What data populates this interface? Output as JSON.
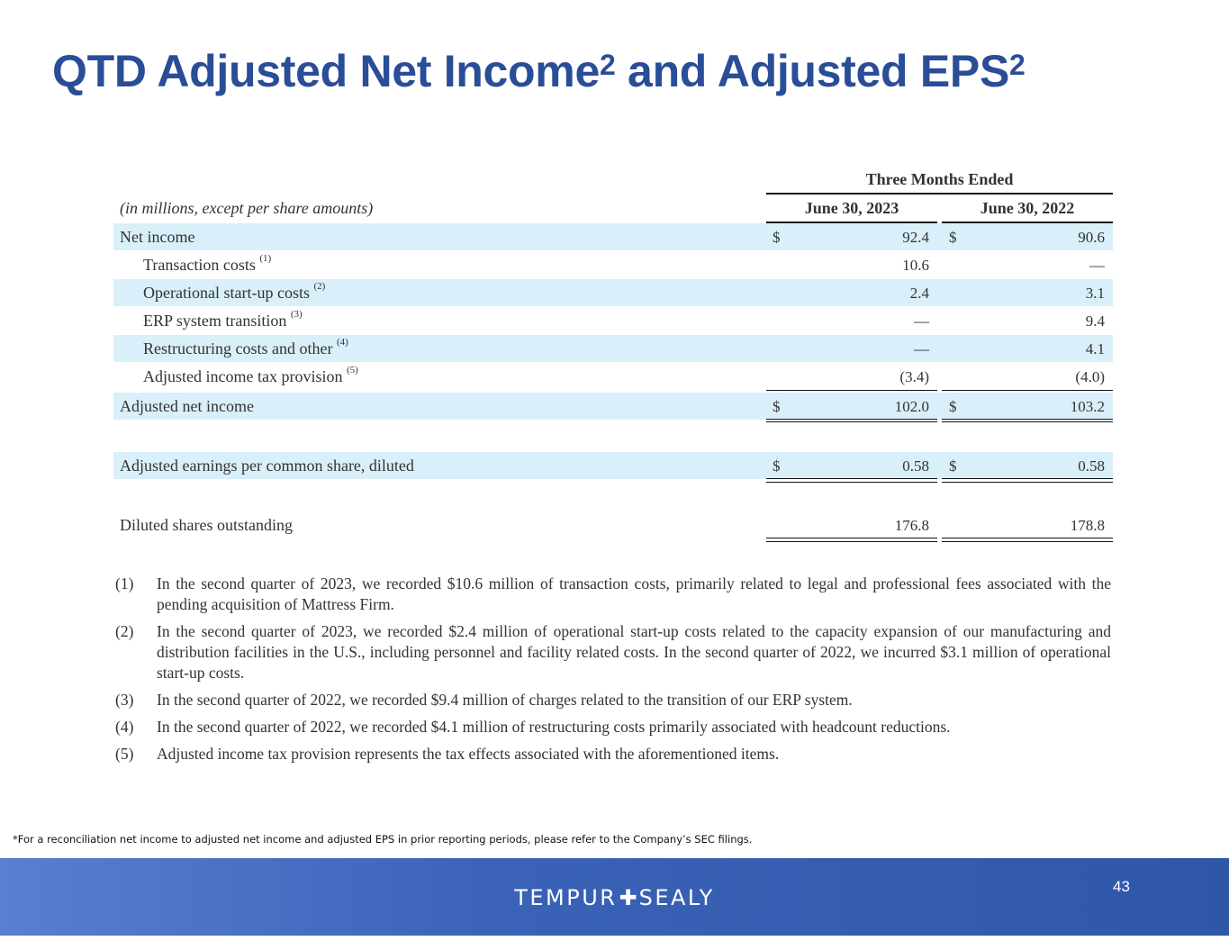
{
  "title": {
    "main": "QTD Adjusted Net Income",
    "sup1": "2",
    "mid": " and Adjusted EPS",
    "sup2": "2"
  },
  "table": {
    "group_header": "Three Months Ended",
    "units_label": "(in millions, except per share amounts)",
    "col1": "June 30, 2023",
    "col2": "June 30, 2022",
    "rows": [
      {
        "label": "Net income",
        "ref": "",
        "d1": "$",
        "v1": "92.4",
        "d2": "$",
        "v2": "90.6"
      },
      {
        "label": "Transaction costs",
        "ref": "(1)",
        "d1": "",
        "v1": "10.6",
        "d2": "",
        "v2": "—"
      },
      {
        "label": "Operational start-up costs",
        "ref": "(2)",
        "d1": "",
        "v1": "2.4",
        "d2": "",
        "v2": "3.1"
      },
      {
        "label": "ERP system transition",
        "ref": "(3)",
        "d1": "",
        "v1": "—",
        "d2": "",
        "v2": "9.4"
      },
      {
        "label": "Restructuring costs and other",
        "ref": "(4)",
        "d1": "",
        "v1": "—",
        "d2": "",
        "v2": "4.1"
      },
      {
        "label": "Adjusted income tax provision",
        "ref": "(5)",
        "d1": "",
        "v1": "(3.4)",
        "d2": "",
        "v2": "(4.0)"
      },
      {
        "label": "Adjusted net income",
        "ref": "",
        "d1": "$",
        "v1": "102.0",
        "d2": "$",
        "v2": "103.2"
      },
      {
        "label": "Adjusted earnings per common share, diluted",
        "ref": "",
        "d1": "$",
        "v1": "0.58",
        "d2": "$",
        "v2": "0.58"
      },
      {
        "label": "Diluted shares outstanding",
        "ref": "",
        "d1": "",
        "v1": "176.8",
        "d2": "",
        "v2": "178.8"
      }
    ]
  },
  "notes": [
    {
      "num": "(1)",
      "text": "In the second quarter of 2023, we recorded $10.6 million of transaction costs, primarily related to legal and professional fees associated with the pending acquisition of Mattress Firm."
    },
    {
      "num": "(2)",
      "text": "In the second quarter of 2023, we recorded $2.4 million of operational start-up costs related to the capacity expansion of our manufacturing and distribution facilities in the U.S., including personnel and facility related costs. In the second quarter of 2022, we incurred $3.1 million of operational start-up costs."
    },
    {
      "num": "(3)",
      "text": "In the second quarter of 2022, we recorded $9.4 million of charges related to the transition of our ERP system."
    },
    {
      "num": "(4)",
      "text": "In the second quarter of 2022, we recorded $4.1 million of restructuring costs primarily associated with headcount reductions."
    },
    {
      "num": "(5)",
      "text": "Adjusted income tax provision represents the tax effects associated with the aforementioned items."
    }
  ],
  "footnote": "*For a reconciliation net income to adjusted net income and adjusted EPS in prior reporting periods, please refer to the Company’s SEC filings.",
  "footer": {
    "logo_left": "TEMPUR",
    "logo_plus": "✚",
    "logo_right": "SEALY",
    "page_number": "43"
  },
  "colors": {
    "title": "#2a4d97",
    "band": "#d9effa",
    "footer": "#2f57a8"
  }
}
